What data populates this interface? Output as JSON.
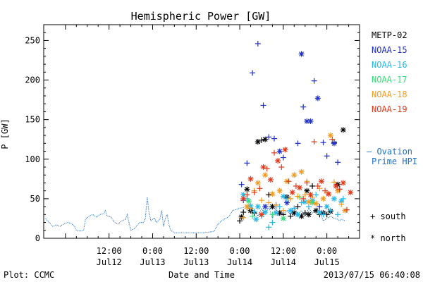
{
  "chart_data": {
    "type": "scatter",
    "title": "Hemispheric Power [GW]",
    "ylabel": "P [GW]",
    "xlabel": "Date and Time",
    "ylim": [
      0,
      270
    ],
    "yticks": [
      0,
      50,
      100,
      150,
      200,
      250
    ],
    "xlim": [
      -6,
      81
    ],
    "x_units": "hours since 2013/07/12 00:00 UT",
    "xticks": [
      {
        "x": 12,
        "time": "12:00",
        "date": "Jul12"
      },
      {
        "x": 24,
        "time": "0:00",
        "date": "Jul13"
      },
      {
        "x": 36,
        "time": "12:00",
        "date": "Jul13"
      },
      {
        "x": 48,
        "time": "0:00",
        "date": "Jul14"
      },
      {
        "x": 60,
        "time": "12:00",
        "date": "Jul14"
      },
      {
        "x": 72,
        "time": "0:00",
        "date": "Jul15"
      }
    ],
    "footer_left": "Plot: CCMC",
    "footer_right": "2013/07/15 06:40:08",
    "legend": [
      {
        "name": "METP-02",
        "color": "#000000"
      },
      {
        "name": "NOAA-15",
        "color": "#1f2fc8"
      },
      {
        "name": "NOAA-16",
        "color": "#22b8e8"
      },
      {
        "name": "NOAA-17",
        "color": "#33dd77"
      },
      {
        "name": "NOAA-18",
        "color": "#f09a20"
      },
      {
        "name": "NOAA-19",
        "color": "#e03a1a"
      }
    ],
    "ovation_label_1": "— Ovation",
    "ovation_label_2": "Prime HPI",
    "ovation_color": "#1f6fc8",
    "marker_legend": [
      {
        "symbol": "+",
        "label": "south"
      },
      {
        "symbol": "*",
        "label": "north"
      }
    ],
    "ovation": [
      [
        -5.5,
        25
      ],
      [
        -4.5,
        20
      ],
      [
        -3.5,
        15
      ],
      [
        -2.5,
        17
      ],
      [
        -1.5,
        15
      ],
      [
        -0.5,
        18
      ],
      [
        0.5,
        20
      ],
      [
        1.5,
        19
      ],
      [
        2.5,
        15
      ],
      [
        3,
        10
      ],
      [
        4,
        9
      ],
      [
        5,
        10
      ],
      [
        5.5,
        24
      ],
      [
        6.5,
        28
      ],
      [
        7.5,
        30
      ],
      [
        8.5,
        27
      ],
      [
        9.5,
        30
      ],
      [
        10.5,
        31
      ],
      [
        11,
        35
      ],
      [
        11.5,
        28
      ],
      [
        12.5,
        27
      ],
      [
        13.5,
        20
      ],
      [
        14.5,
        18
      ],
      [
        15.5,
        22
      ],
      [
        16.5,
        24
      ],
      [
        17,
        30
      ],
      [
        18,
        10
      ],
      [
        19,
        12
      ],
      [
        19.5,
        15
      ],
      [
        20.5,
        20
      ],
      [
        21.5,
        20
      ],
      [
        22,
        25
      ],
      [
        22.5,
        52
      ],
      [
        23,
        33
      ],
      [
        23.5,
        22
      ],
      [
        24.5,
        26
      ],
      [
        25,
        20
      ],
      [
        26,
        24
      ],
      [
        26.5,
        35
      ],
      [
        27,
        15
      ],
      [
        27.5,
        25
      ],
      [
        28,
        30
      ],
      [
        28.5,
        17
      ],
      [
        29,
        10
      ],
      [
        30,
        7
      ],
      [
        32,
        7
      ],
      [
        34,
        7
      ],
      [
        36,
        7
      ],
      [
        38,
        7
      ],
      [
        40,
        8
      ],
      [
        41,
        9
      ],
      [
        42,
        18
      ],
      [
        43,
        22
      ],
      [
        44,
        25
      ],
      [
        45,
        27
      ],
      [
        46,
        35
      ],
      [
        48,
        38
      ],
      [
        49,
        39
      ],
      [
        50,
        36
      ],
      [
        51,
        40
      ],
      [
        52,
        36
      ],
      [
        53,
        28
      ],
      [
        54,
        38
      ],
      [
        55,
        30
      ],
      [
        56,
        40
      ],
      [
        57,
        25
      ],
      [
        57.5,
        32
      ],
      [
        58,
        40
      ],
      [
        58.5,
        28
      ],
      [
        59,
        33
      ],
      [
        60,
        30
      ],
      [
        61,
        35
      ],
      [
        62,
        30
      ],
      [
        63,
        40
      ],
      [
        64,
        30
      ],
      [
        65,
        35
      ],
      [
        66,
        28
      ],
      [
        67,
        38
      ],
      [
        68,
        32
      ],
      [
        69,
        36
      ],
      [
        70,
        35
      ],
      [
        71,
        22
      ],
      [
        72,
        25
      ],
      [
        73,
        28
      ],
      [
        74,
        25
      ],
      [
        75,
        24
      ],
      [
        75.5,
        22
      ],
      [
        76,
        24
      ],
      [
        77,
        22
      ]
    ],
    "series": [
      {
        "name": "METP-02",
        "points": [
          [
            48,
            22,
            "s"
          ],
          [
            48.5,
            27,
            "n"
          ],
          [
            49,
            33,
            "s"
          ],
          [
            50,
            62,
            "n"
          ],
          [
            51,
            35,
            "n"
          ],
          [
            52,
            32,
            "s"
          ],
          [
            53,
            122,
            "n"
          ],
          [
            54,
            124,
            "s"
          ],
          [
            55,
            125,
            "n"
          ],
          [
            56,
            55,
            "s"
          ],
          [
            57,
            40,
            "n"
          ],
          [
            58,
            42,
            "s"
          ],
          [
            59,
            32,
            "n"
          ],
          [
            60,
            30,
            "s"
          ],
          [
            61,
            52,
            "n"
          ],
          [
            62,
            28,
            "s"
          ],
          [
            63,
            32,
            "n"
          ],
          [
            64,
            40,
            "s"
          ],
          [
            65,
            28,
            "n"
          ],
          [
            66,
            32,
            "s"
          ],
          [
            67,
            30,
            "n"
          ],
          [
            68,
            66,
            "s"
          ],
          [
            69,
            35,
            "n"
          ],
          [
            70,
            30,
            "s"
          ],
          [
            71,
            32,
            "n"
          ],
          [
            72,
            30,
            "s"
          ],
          [
            73,
            34,
            "n"
          ],
          [
            74,
            121,
            "s"
          ],
          [
            75,
            68,
            "n"
          ],
          [
            76.5,
            137,
            "n"
          ],
          [
            75.5,
            62,
            "s"
          ],
          [
            66.5,
            60,
            "n"
          ]
        ]
      },
      {
        "name": "NOAA-15",
        "points": [
          [
            48.5,
            68,
            "s"
          ],
          [
            50,
            95,
            "s"
          ],
          [
            51.5,
            209,
            "s"
          ],
          [
            53,
            246,
            "s"
          ],
          [
            54.5,
            168,
            "s"
          ],
          [
            56,
            128,
            "s"
          ],
          [
            57.5,
            126,
            "s"
          ],
          [
            59,
            110,
            "n"
          ],
          [
            60,
            102,
            "s"
          ],
          [
            64,
            120,
            "s"
          ],
          [
            65,
            233,
            "n"
          ],
          [
            65.5,
            166,
            "s"
          ],
          [
            66.5,
            148,
            "n"
          ],
          [
            67.5,
            148,
            "n"
          ],
          [
            68.5,
            199,
            "s"
          ],
          [
            69.5,
            177,
            "n"
          ],
          [
            71,
            121,
            "s"
          ],
          [
            72,
            104,
            "s"
          ],
          [
            74,
            120,
            "n"
          ],
          [
            75,
            96,
            "s"
          ],
          [
            49,
            48,
            "s"
          ],
          [
            55,
            40,
            "n"
          ],
          [
            61,
            45,
            "n"
          ],
          [
            70,
            40,
            "s"
          ]
        ]
      },
      {
        "name": "NOAA-16",
        "points": [
          [
            49,
            55,
            "n"
          ],
          [
            50,
            50,
            "s"
          ],
          [
            51,
            41,
            "n"
          ],
          [
            52,
            34,
            "s"
          ],
          [
            53,
            40,
            "n"
          ],
          [
            54,
            28,
            "s"
          ],
          [
            55,
            33,
            "n"
          ],
          [
            56,
            14,
            "s"
          ],
          [
            57,
            20,
            "s"
          ],
          [
            58,
            32,
            "n"
          ],
          [
            59,
            40,
            "s"
          ],
          [
            60,
            53,
            "n"
          ],
          [
            61,
            50,
            "s"
          ],
          [
            62,
            35,
            "n"
          ],
          [
            63,
            38,
            "s"
          ],
          [
            64,
            30,
            "n"
          ],
          [
            65,
            45,
            "s"
          ],
          [
            66,
            46,
            "n"
          ],
          [
            67,
            40,
            "s"
          ],
          [
            68,
            48,
            "n"
          ],
          [
            69,
            55,
            "s"
          ],
          [
            70,
            33,
            "n"
          ],
          [
            71,
            30,
            "s"
          ],
          [
            72,
            40,
            "n"
          ],
          [
            73,
            35,
            "s"
          ],
          [
            74,
            50,
            "n"
          ],
          [
            75,
            30,
            "s"
          ],
          [
            76,
            47,
            "n"
          ],
          [
            76.5,
            50,
            "s"
          ],
          [
            52.5,
            24,
            "n"
          ]
        ]
      },
      {
        "name": "NOAA-17",
        "points": [
          [
            50.5,
            47,
            "n"
          ],
          [
            51.5,
            28,
            "s"
          ],
          [
            57,
            30,
            "s"
          ],
          [
            60,
            25,
            "n"
          ],
          [
            64.5,
            52,
            "s"
          ],
          [
            68,
            45,
            "n"
          ]
        ]
      },
      {
        "name": "NOAA-18",
        "points": [
          [
            49,
            26,
            "s"
          ],
          [
            50,
            40,
            "n"
          ],
          [
            51,
            38,
            "s"
          ],
          [
            52,
            60,
            "s"
          ],
          [
            53,
            70,
            "n"
          ],
          [
            54,
            48,
            "s"
          ],
          [
            55,
            80,
            "n"
          ],
          [
            56,
            45,
            "s"
          ],
          [
            57,
            56,
            "n"
          ],
          [
            58,
            42,
            "s"
          ],
          [
            59,
            60,
            "n"
          ],
          [
            60,
            35,
            "s"
          ],
          [
            61,
            72,
            "n"
          ],
          [
            62,
            50,
            "s"
          ],
          [
            63,
            80,
            "n"
          ],
          [
            64,
            53,
            "s"
          ],
          [
            65,
            84,
            "n"
          ],
          [
            66,
            55,
            "s"
          ],
          [
            67,
            46,
            "n"
          ],
          [
            68,
            52,
            "s"
          ],
          [
            69,
            44,
            "n"
          ],
          [
            70,
            63,
            "s"
          ],
          [
            71,
            50,
            "n"
          ],
          [
            72,
            58,
            "s"
          ],
          [
            73,
            130,
            "n"
          ],
          [
            74,
            71,
            "s"
          ],
          [
            75,
            60,
            "n"
          ],
          [
            76,
            43,
            "s"
          ],
          [
            77,
            35,
            "n"
          ],
          [
            66.5,
            72,
            "s"
          ]
        ]
      },
      {
        "name": "NOAA-19",
        "points": [
          [
            49,
            50,
            "n"
          ],
          [
            50,
            55,
            "s"
          ],
          [
            51,
            75,
            "n"
          ],
          [
            52,
            58,
            "s"
          ],
          [
            53.5,
            63,
            "s"
          ],
          [
            54.5,
            90,
            "n"
          ],
          [
            55.5,
            88,
            "s"
          ],
          [
            56.5,
            74,
            "n"
          ],
          [
            57.5,
            108,
            "s"
          ],
          [
            58.5,
            98,
            "n"
          ],
          [
            59.5,
            90,
            "s"
          ],
          [
            60.5,
            112,
            "n"
          ],
          [
            61.5,
            72,
            "s"
          ],
          [
            62.5,
            58,
            "n"
          ],
          [
            63.5,
            66,
            "s"
          ],
          [
            64.5,
            64,
            "n"
          ],
          [
            65.5,
            50,
            "s"
          ],
          [
            66.5,
            70,
            "s"
          ],
          [
            67.5,
            55,
            "n"
          ],
          [
            68.5,
            122,
            "s"
          ],
          [
            69.5,
            66,
            "s"
          ],
          [
            70.5,
            72,
            "n"
          ],
          [
            71.5,
            60,
            "s"
          ],
          [
            72.5,
            56,
            "n"
          ],
          [
            73.5,
            125,
            "s"
          ],
          [
            74.5,
            66,
            "n"
          ],
          [
            75.5,
            62,
            "s"
          ],
          [
            76.5,
            70,
            "n"
          ],
          [
            77.5,
            36,
            "s"
          ],
          [
            78.5,
            58,
            "n"
          ],
          [
            54,
            30,
            "n"
          ]
        ]
      }
    ]
  }
}
